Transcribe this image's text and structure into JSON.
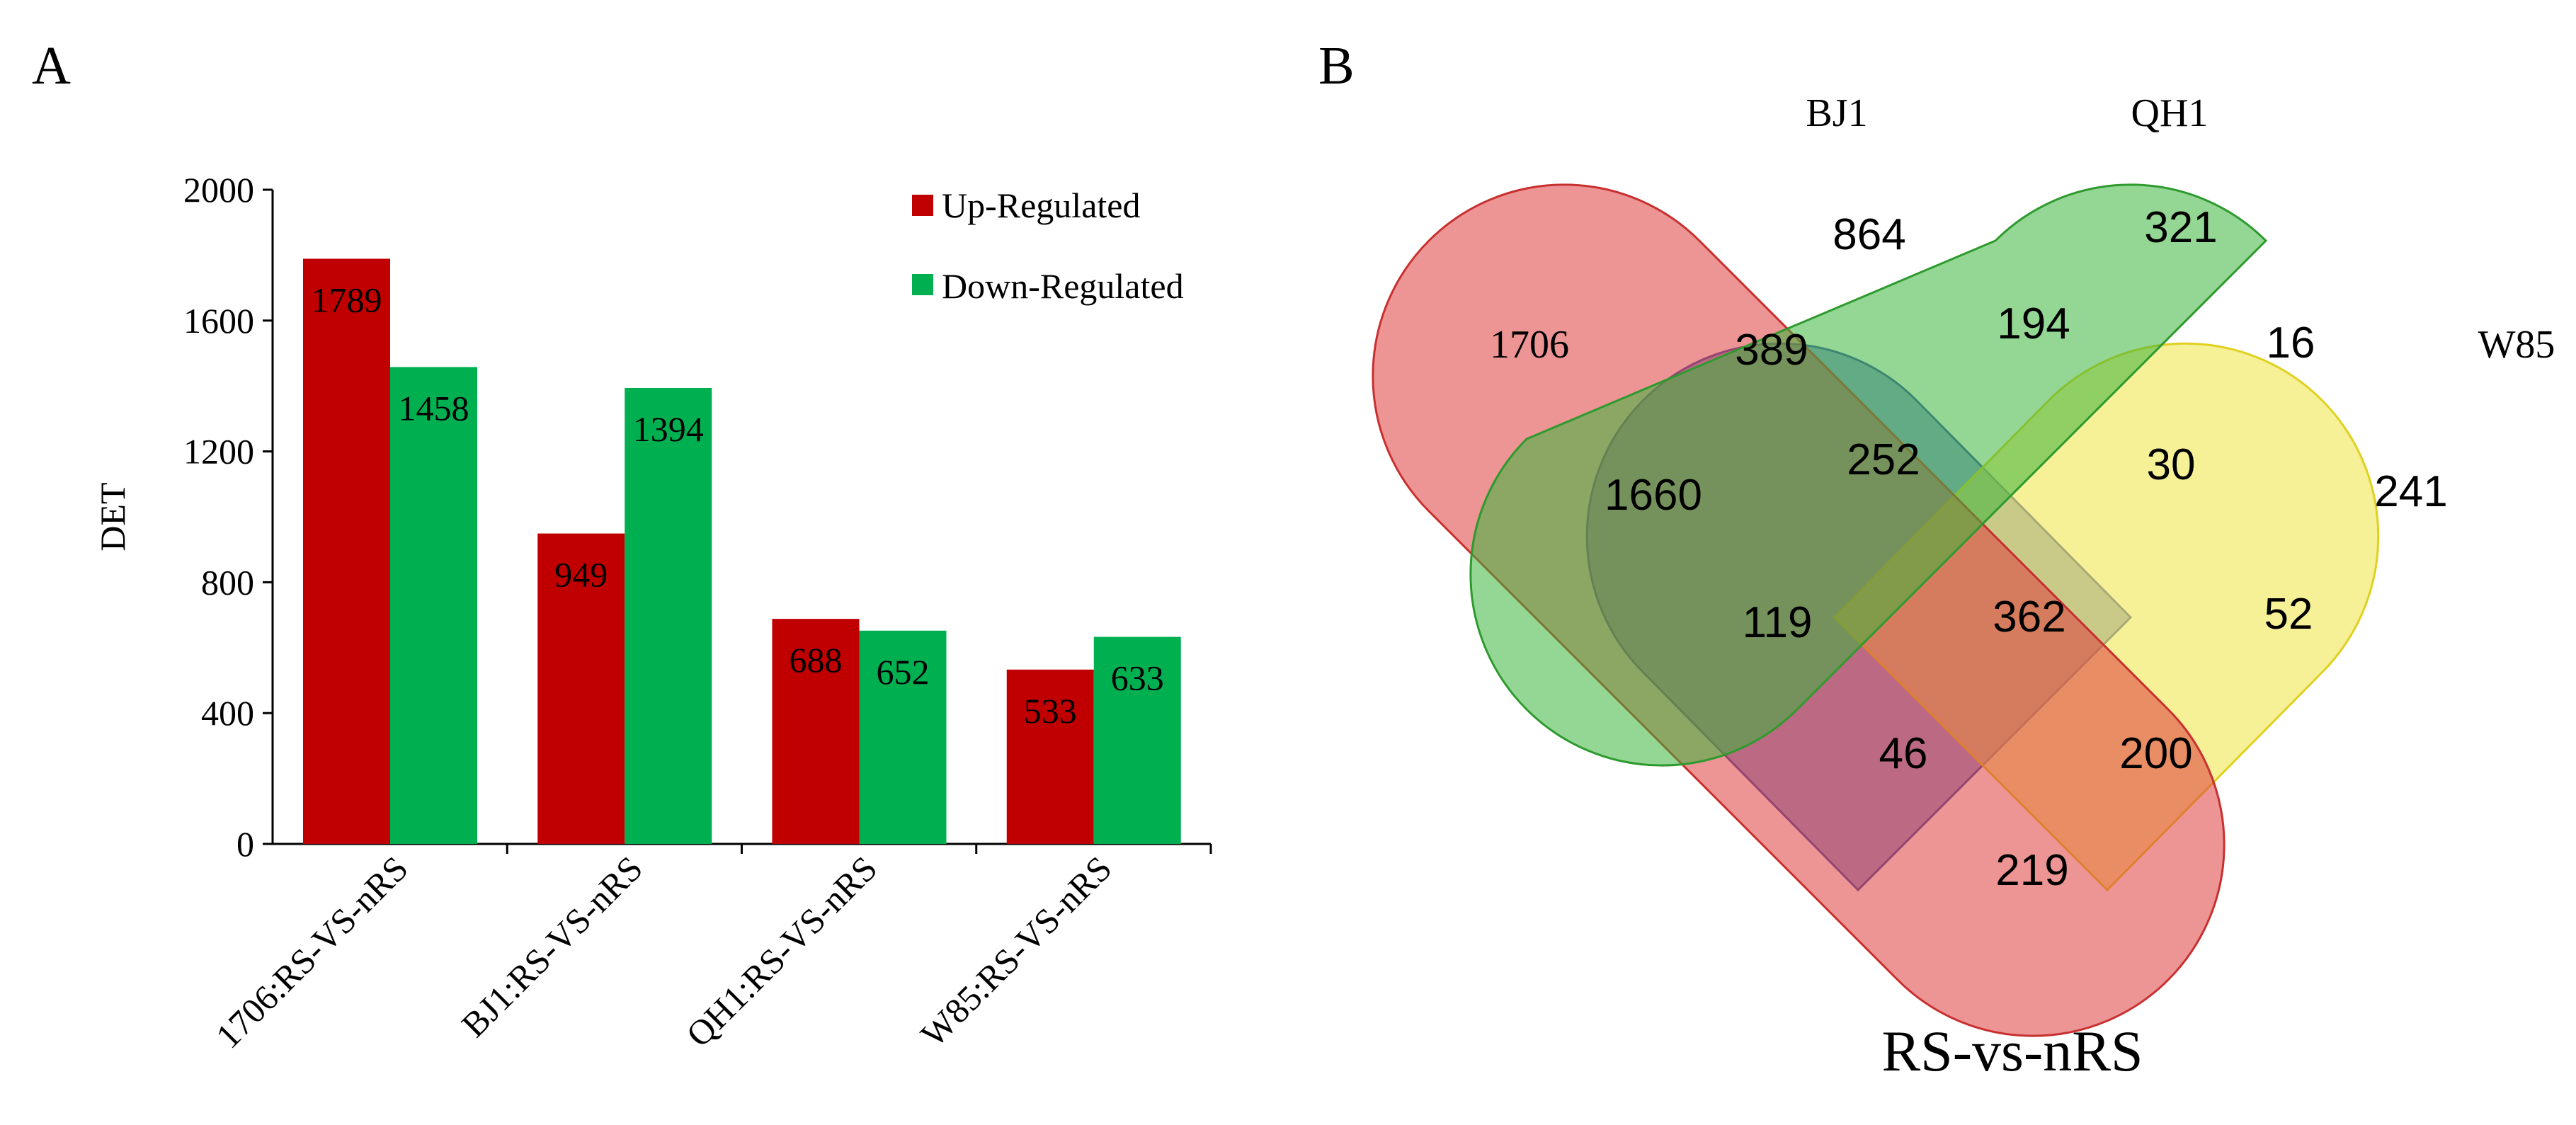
{
  "panels": {
    "a_label": "A",
    "b_label": "B"
  },
  "chart_data": [
    {
      "type": "bar",
      "panel": "A",
      "title": "",
      "xlabel": "",
      "ylabel": "DET",
      "ylim": [
        0,
        2000
      ],
      "yticks": [
        "0",
        "400",
        "800",
        "1200",
        "1600",
        "2000"
      ],
      "categories": [
        "1706:RS-VS-nRS",
        "BJ1:RS-VS-nRS",
        "QH1:RS-VS-nRS",
        "W85:RS-VS-nRS"
      ],
      "series": [
        {
          "name": "Up-Regulated",
          "color": "#c00000",
          "values": [
            1789,
            949,
            688,
            533
          ],
          "labels": [
            "1789",
            "949",
            "688",
            "533"
          ]
        },
        {
          "name": "Down-Regulated",
          "color": "#00b050",
          "values": [
            1458,
            1394,
            652,
            633
          ],
          "labels": [
            "1458",
            "1394",
            "652",
            "633"
          ]
        }
      ],
      "legend_position": "top-right"
    },
    {
      "type": "venn",
      "panel": "B",
      "title": "RS-vs-nRS",
      "sets": [
        {
          "name": "1706",
          "color": "#4a63c4"
        },
        {
          "name": "BJ1",
          "color": "#de3c3c"
        },
        {
          "name": "QH1",
          "color": "#3cb43c"
        },
        {
          "name": "W85",
          "color": "#f0e650"
        }
      ],
      "regions": [
        {
          "sets": [
            "1706"
          ],
          "value": "1660"
        },
        {
          "sets": [
            "BJ1"
          ],
          "value": "864"
        },
        {
          "sets": [
            "QH1"
          ],
          "value": "321"
        },
        {
          "sets": [
            "W85"
          ],
          "value": "241"
        },
        {
          "sets": [
            "1706",
            "BJ1"
          ],
          "value": "389"
        },
        {
          "sets": [
            "BJ1",
            "QH1"
          ],
          "value": "194"
        },
        {
          "sets": [
            "QH1",
            "W85"
          ],
          "value": "16"
        },
        {
          "sets": [
            "1706",
            "W85"
          ],
          "value": "219"
        },
        {
          "sets": [
            "1706",
            "QH1"
          ],
          "value": "119"
        },
        {
          "sets": [
            "BJ1",
            "W85"
          ],
          "value": "52"
        },
        {
          "sets": [
            "1706",
            "BJ1",
            "QH1"
          ],
          "value": "252"
        },
        {
          "sets": [
            "BJ1",
            "QH1",
            "W85"
          ],
          "value": "30"
        },
        {
          "sets": [
            "1706",
            "QH1",
            "W85"
          ],
          "value": "46"
        },
        {
          "sets": [
            "1706",
            "BJ1",
            "W85"
          ],
          "value": "200"
        },
        {
          "sets": [
            "1706",
            "BJ1",
            "QH1",
            "W85"
          ],
          "value": "362"
        }
      ]
    }
  ]
}
